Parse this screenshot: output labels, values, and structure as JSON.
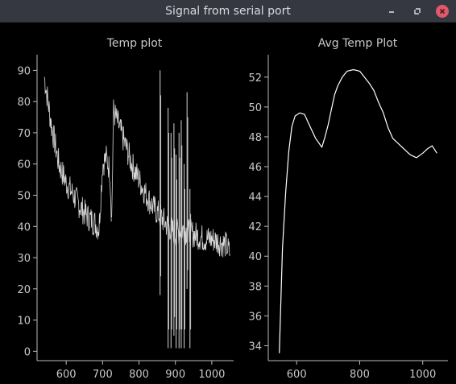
{
  "window": {
    "title": "Signal from serial port",
    "controls": {
      "minimize": "minimize-icon",
      "restore": "restore-icon",
      "close": "close-icon"
    }
  },
  "colors": {
    "background": "#000000",
    "titlebar": "#353841",
    "axis": "#bcbcbc",
    "trace": "#d6d6d6",
    "close": "#e0586a"
  },
  "chart_data": [
    {
      "type": "line",
      "title": "Temp plot",
      "xlabel": "",
      "ylabel": "",
      "xlim": [
        520,
        1060
      ],
      "ylim": [
        -3,
        95
      ],
      "xticks": [
        600,
        700,
        800,
        900,
        1000
      ],
      "yticks": [
        0,
        10,
        20,
        30,
        40,
        50,
        60,
        70,
        80,
        90
      ],
      "x_start": 540,
      "x_end": 1050,
      "segments": [
        {
          "x": [
            540,
            560,
            580,
            600,
            620,
            640,
            660,
            680,
            690
          ],
          "y": [
            88,
            72,
            60,
            54,
            50,
            46,
            43,
            41,
            39
          ]
        },
        {
          "x": [
            690,
            700,
            710,
            720,
            725
          ],
          "y": [
            39,
            60,
            62,
            58,
            42
          ]
        },
        {
          "x": [
            725,
            730,
            760,
            780,
            800,
            820,
            840,
            860
          ],
          "y": [
            42,
            77,
            67,
            60,
            55,
            50,
            46,
            43
          ]
        },
        {
          "x": [
            860,
            880,
            900,
            920,
            940
          ],
          "y": [
            43,
            40,
            38,
            39,
            38
          ]
        },
        {
          "x": [
            940,
            960,
            980,
            1000,
            1020,
            1040,
            1050
          ],
          "y": [
            38,
            37,
            36,
            36,
            35,
            34,
            31
          ]
        }
      ],
      "spikes": [
        {
          "x": 858,
          "lo": 18,
          "hi": 90
        },
        {
          "x": 880,
          "lo": 1,
          "hi": 78
        },
        {
          "x": 888,
          "lo": 1,
          "hi": 70
        },
        {
          "x": 896,
          "lo": 5,
          "hi": 73
        },
        {
          "x": 902,
          "lo": 1,
          "hi": 63
        },
        {
          "x": 910,
          "lo": 1,
          "hi": 70
        },
        {
          "x": 916,
          "lo": 1,
          "hi": 74
        },
        {
          "x": 924,
          "lo": 1,
          "hi": 60
        },
        {
          "x": 932,
          "lo": 20,
          "hi": 83
        },
        {
          "x": 940,
          "lo": 1,
          "hi": 52
        }
      ]
    },
    {
      "type": "line",
      "title": "Avg Temp Plot",
      "xlabel": "",
      "ylabel": "",
      "xlim": [
        510,
        1080
      ],
      "ylim": [
        33,
        53.5
      ],
      "xticks": [
        600,
        800,
        1000
      ],
      "yticks": [
        34,
        36,
        38,
        40,
        42,
        44,
        46,
        48,
        50,
        52
      ],
      "x": [
        545,
        555,
        565,
        575,
        585,
        595,
        610,
        625,
        640,
        660,
        680,
        690,
        700,
        710,
        720,
        730,
        745,
        760,
        780,
        800,
        815,
        830,
        845,
        860,
        875,
        890,
        905,
        920,
        940,
        960,
        980,
        1000,
        1015,
        1030,
        1045
      ],
      "y": [
        33.5,
        40.5,
        44.2,
        47.0,
        48.7,
        49.4,
        49.6,
        49.5,
        48.8,
        47.9,
        47.3,
        48.0,
        48.8,
        49.8,
        50.8,
        51.4,
        52.0,
        52.4,
        52.5,
        52.4,
        52.0,
        51.6,
        51.1,
        50.3,
        49.6,
        48.6,
        47.9,
        47.6,
        47.2,
        46.8,
        46.6,
        46.9,
        47.2,
        47.4,
        46.9
      ]
    }
  ]
}
